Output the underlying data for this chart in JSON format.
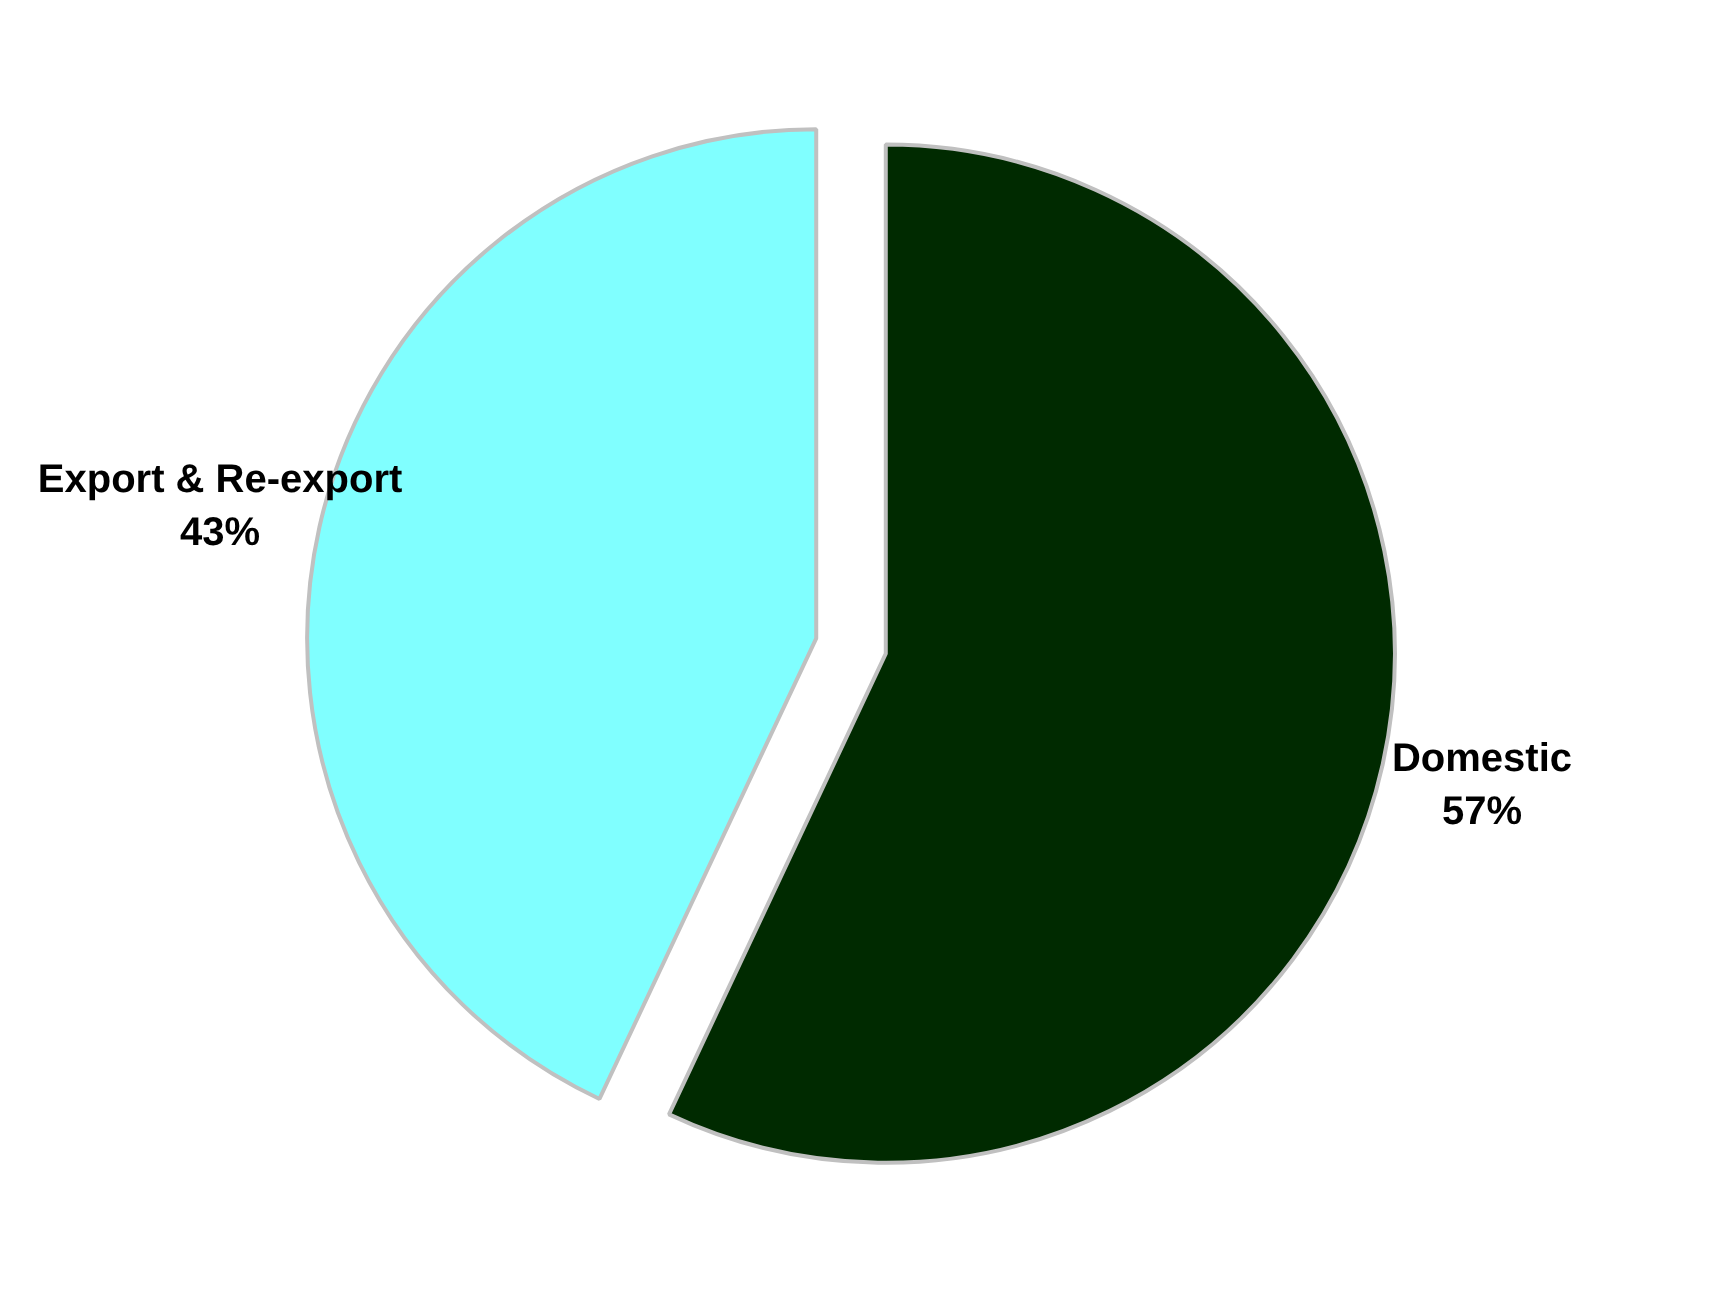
{
  "chart_data": {
    "type": "pie",
    "categories": [
      "Domestic",
      "Export & Re-export"
    ],
    "values": [
      57,
      43
    ],
    "colors": [
      "#002a00",
      "#80ffff"
    ],
    "value_labels": [
      "57%",
      "43%"
    ]
  }
}
